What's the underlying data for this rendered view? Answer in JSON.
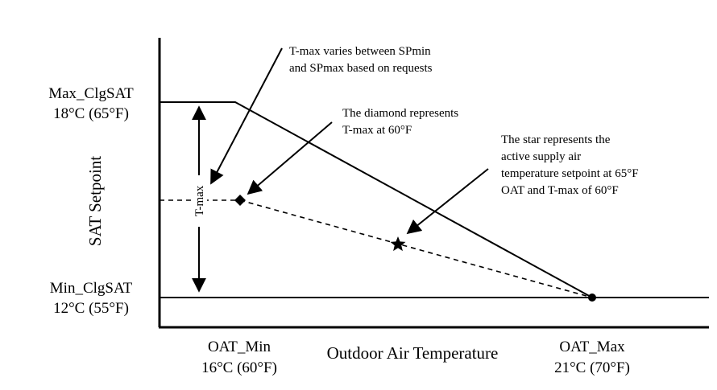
{
  "y_axis_title": "SAT Setpoint",
  "x_axis_title": "Outdoor Air Temperature",
  "max_label": {
    "name": "Max_ClgSAT",
    "value": "18°C (65°F)"
  },
  "min_label": {
    "name": "Min_ClgSAT",
    "value": "12°C (55°F)"
  },
  "oat_min_label": {
    "name": "OAT_Min",
    "value": "16°C (60°F)"
  },
  "oat_max_label": {
    "name": "OAT_Max",
    "value": "21°C (70°F)"
  },
  "tmax_label": "T-max",
  "annotation_1": [
    "T-max varies between SPmin",
    "and SPmax based on requests"
  ],
  "annotation_2": [
    "The diamond represents",
    "T-max at 60°F"
  ],
  "annotation_3": [
    "The star represents the",
    "active supply air",
    "temperature setpoint at 65°F",
    "OAT and T-max of 60°F"
  ]
}
